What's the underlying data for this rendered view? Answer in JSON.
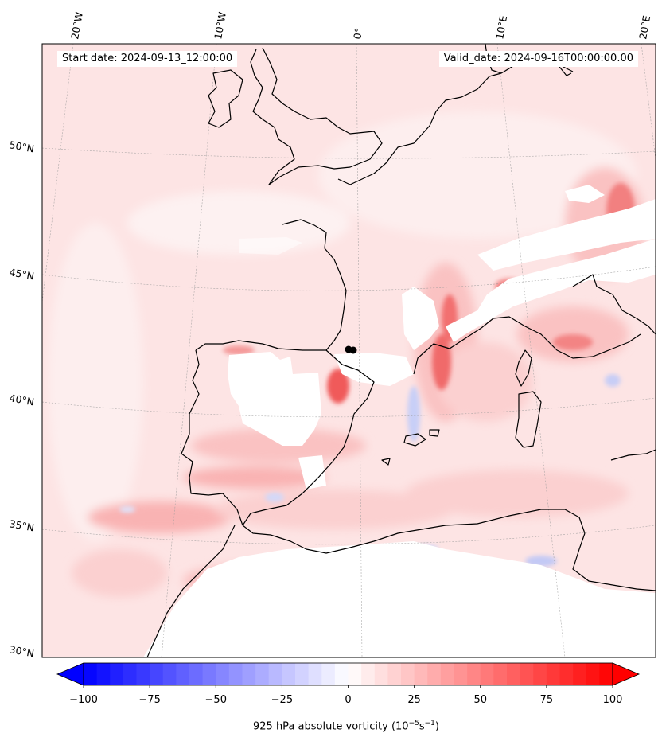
{
  "header": {
    "start_date": "Start date: 2024-09-13_12:00:00",
    "valid_date": "Valid_date: 2024-09-16T00:00:00.00"
  },
  "map": {
    "projection": "lambert-conformal",
    "lon_labels": [
      "20°W",
      "10°W",
      "0°",
      "10°E",
      "20°E"
    ],
    "lat_labels": [
      "50°N",
      "45°N",
      "40°N",
      "35°N",
      "30°N"
    ],
    "gridlines": true,
    "coastlines": true,
    "marker": {
      "lon": -0.4,
      "lat": 41.6,
      "color": "#000000"
    },
    "field": "925 hPa absolute vorticity"
  },
  "colorbar": {
    "cmap": "bwr",
    "vmin": -100,
    "vmax": 100,
    "levels": 40,
    "extend": "both",
    "tick_labels": [
      "−100",
      "−75",
      "−50",
      "−25",
      "0",
      "25",
      "50",
      "75",
      "100"
    ],
    "label": "925 hPa absolute vorticity (10",
    "label_exp1": "−5",
    "label_mid": "s",
    "label_exp2": "−1",
    "label_end": ")"
  }
}
